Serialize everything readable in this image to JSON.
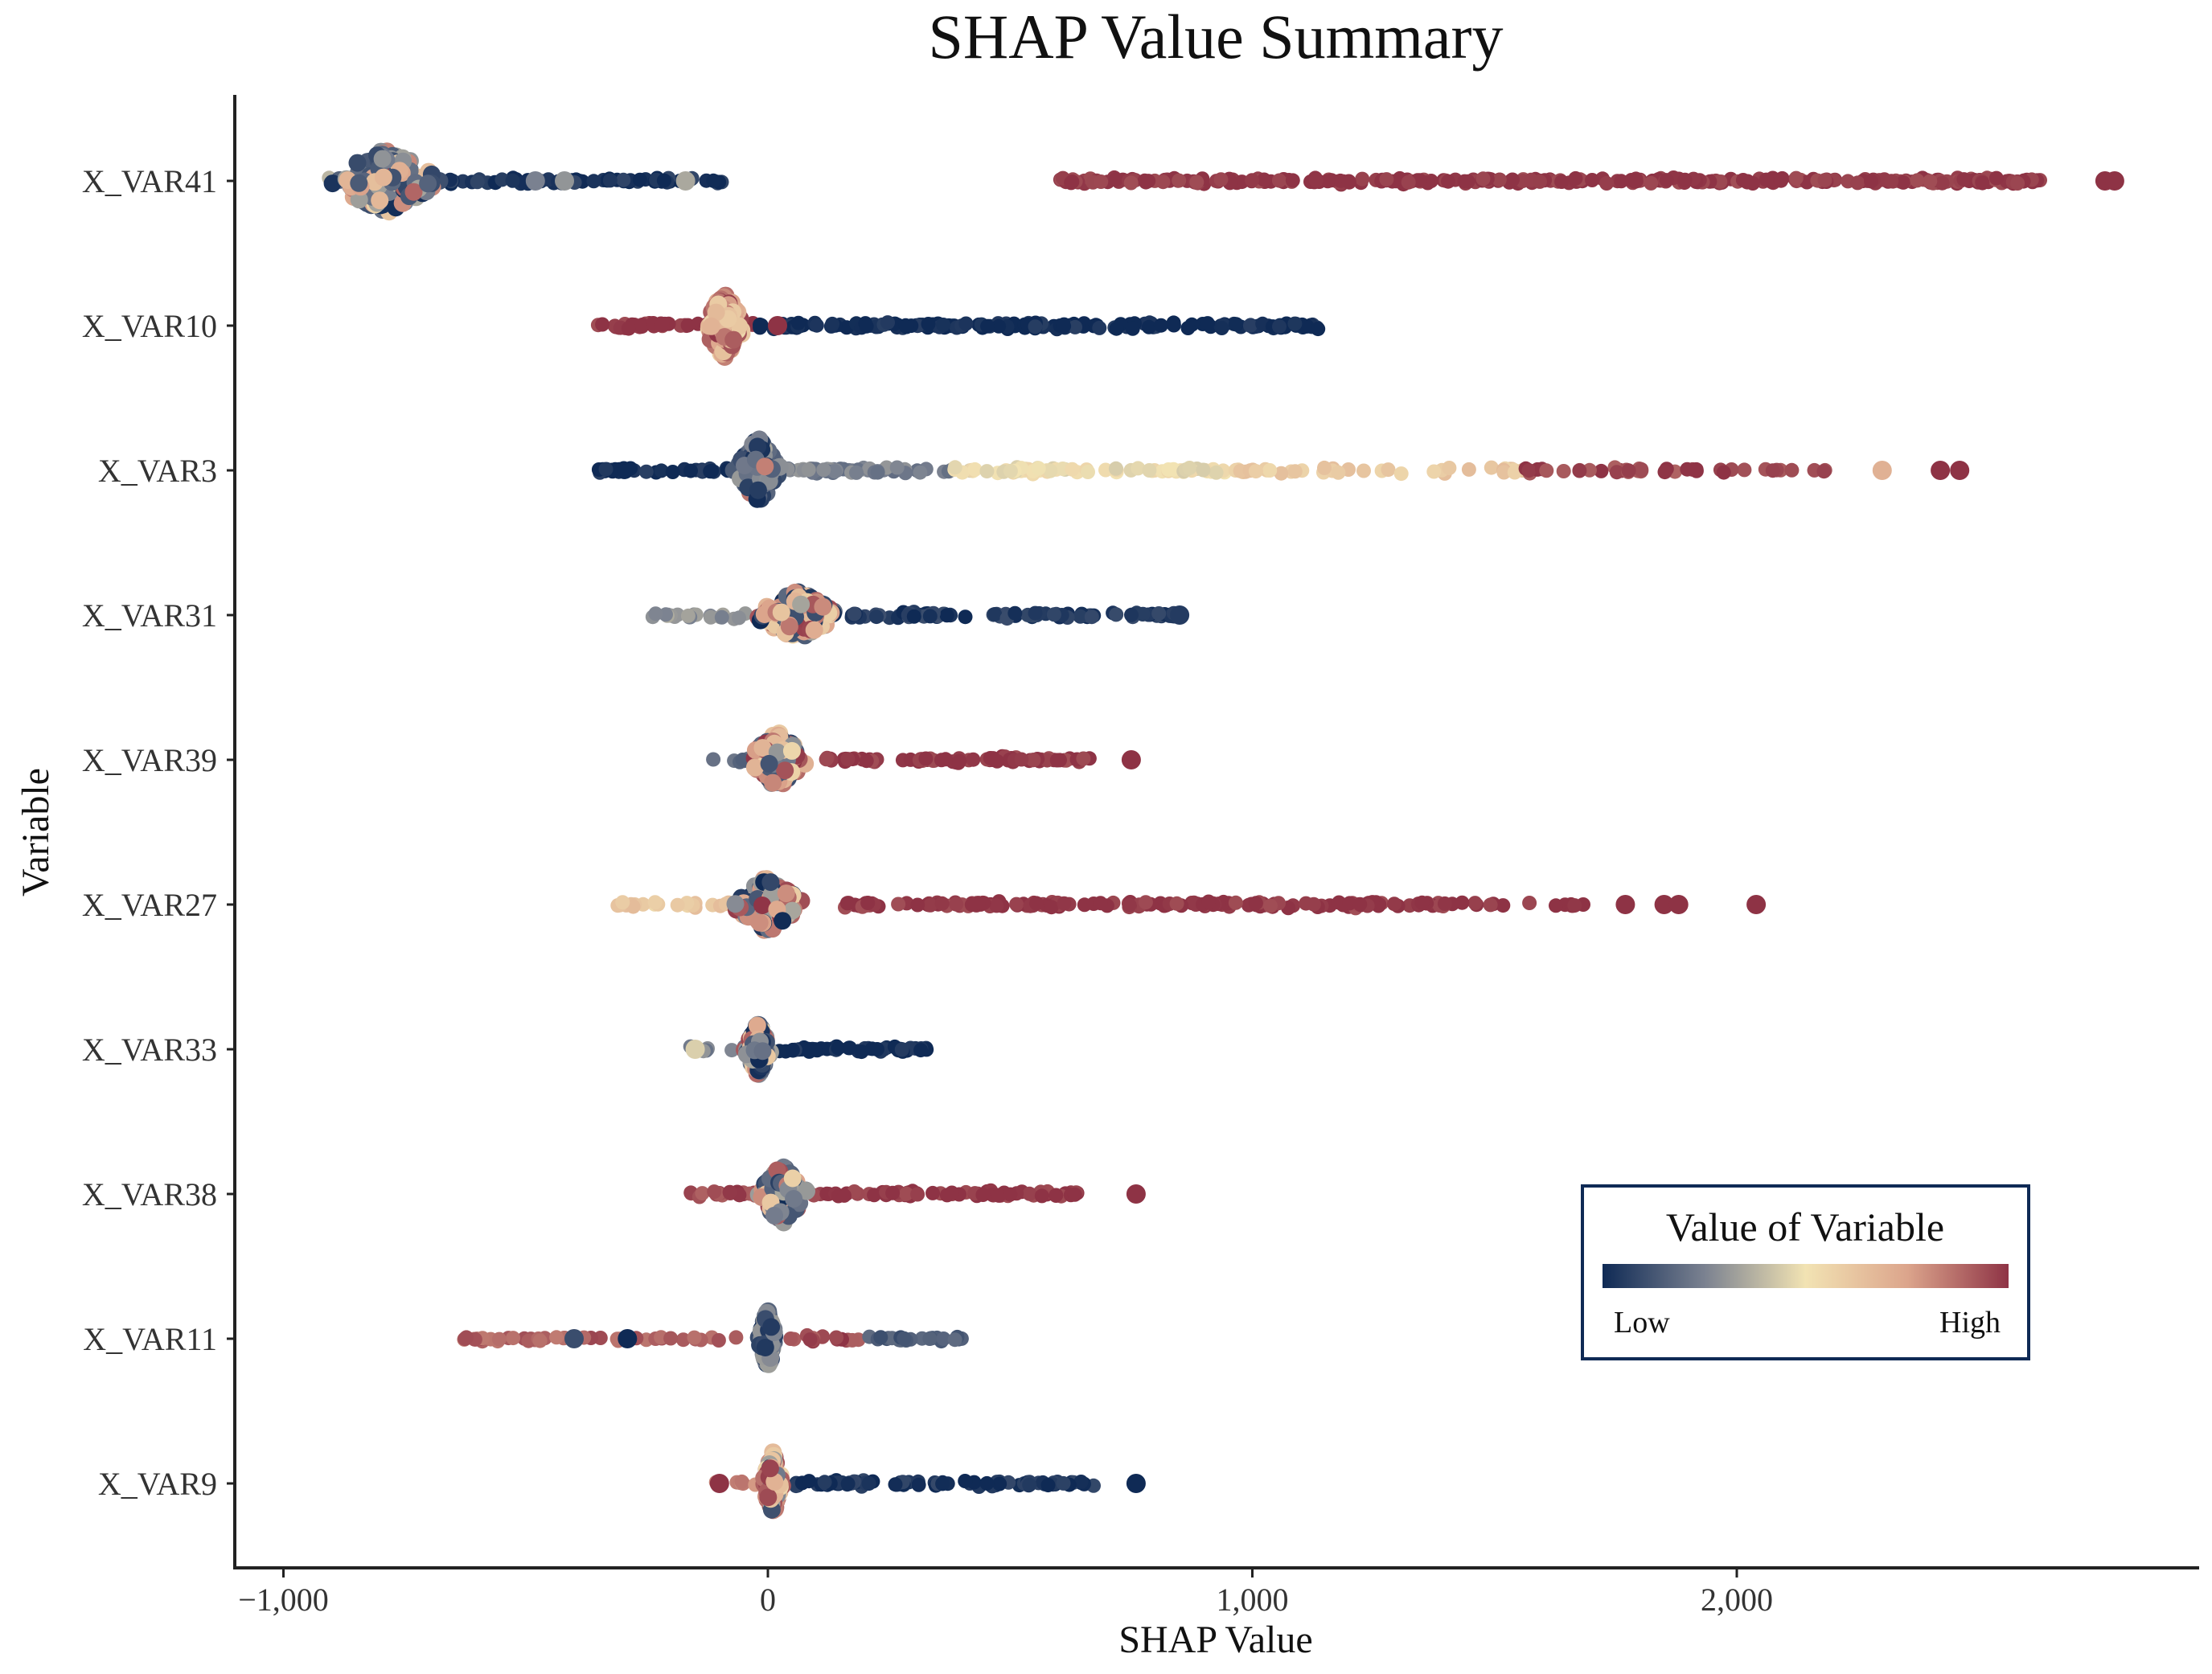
{
  "chart_data": {
    "type": "scatter",
    "subtype": "beeswarm",
    "title": "SHAP Value Summary",
    "xlabel": "SHAP Value",
    "ylabel": "Variable",
    "xlim": [
      -1100,
      2960
    ],
    "x_ticks": [
      -1000,
      0,
      1000,
      2000
    ],
    "x_tick_labels": [
      "−1,000",
      "0",
      "1,000",
      "2,000"
    ],
    "grid": false,
    "colors": {
      "low": "#0f2a55",
      "mid_low": "#7a8190",
      "mid": "#f2e3b3",
      "mid_high": "#dca58c",
      "high": "#8e3345"
    },
    "legend": {
      "title": "Value of Variable",
      "low_label": "Low",
      "high_label": "High",
      "position": "bottom-right"
    },
    "series": [
      {
        "name": "X_VAR41",
        "body": {
          "center": -790,
          "half_width": 130,
          "spread": 0.95,
          "color_mix": 0.4
        },
        "segments": [
          {
            "from": -930,
            "to": -680,
            "color": 0.35
          },
          {
            "from": -680,
            "to": -90,
            "color": 0.03,
            "density": 0.75
          },
          {
            "from": 600,
            "to": 2630,
            "color": 1.0,
            "density": 1.0
          }
        ],
        "highlights": [
          {
            "x": -480,
            "color": 0.25
          },
          {
            "x": -420,
            "color": 0.3
          },
          {
            "x": -170,
            "color": 0.35
          },
          {
            "x": 2760,
            "color": 1.0
          },
          {
            "x": 2780,
            "color": 1.0
          }
        ]
      },
      {
        "name": "X_VAR10",
        "body": {
          "center": -90,
          "half_width": 50,
          "spread": 0.95,
          "color_mix": 0.98
        },
        "segments": [
          {
            "from": -370,
            "to": -30,
            "color": 1.0
          },
          {
            "from": -20,
            "to": 1150,
            "color": 0.0,
            "density": 1.0
          }
        ],
        "highlights": [
          {
            "x": 20,
            "color": 1.0
          }
        ]
      },
      {
        "name": "X_VAR3",
        "body": {
          "center": -20,
          "half_width": 55,
          "spread": 0.95,
          "color_mix": 0.05
        },
        "segments": [
          {
            "from": -350,
            "to": 0,
            "color": 0.0
          },
          {
            "from": 0,
            "to": 380,
            "color": 0.25
          },
          {
            "from": 380,
            "to": 960,
            "color": 0.5,
            "density": 0.8
          },
          {
            "from": 960,
            "to": 1560,
            "color": 0.6,
            "density": 0.45
          },
          {
            "from": 1560,
            "to": 2200,
            "color": 0.95,
            "density": 0.45
          }
        ],
        "highlights": [
          {
            "x": 2300,
            "color": 0.7
          },
          {
            "x": 2420,
            "color": 1.0
          },
          {
            "x": 2460,
            "color": 1.0
          }
        ]
      },
      {
        "name": "X_VAR31",
        "body": {
          "center": 60,
          "half_width": 100,
          "spread": 0.7,
          "color_mix": 0.5
        },
        "segments": [
          {
            "from": -240,
            "to": -40,
            "color": 0.3,
            "density": 0.7
          },
          {
            "from": 150,
            "to": 840,
            "color": 0.05,
            "density": 0.85
          }
        ],
        "highlights": [
          {
            "x": 850,
            "color": 0.05
          }
        ]
      },
      {
        "name": "X_VAR39",
        "body": {
          "center": 20,
          "half_width": 70,
          "spread": 0.8,
          "color_mix": 0.7
        },
        "segments": [
          {
            "from": -130,
            "to": -30,
            "color": 0.2,
            "density": 0.6
          },
          {
            "from": 120,
            "to": 670,
            "color": 1.0,
            "density": 0.9
          }
        ],
        "highlights": [
          {
            "x": 750,
            "color": 1.0
          }
        ]
      },
      {
        "name": "X_VAR27",
        "body": {
          "center": 0,
          "half_width": 80,
          "spread": 0.8,
          "color_mix": 0.4
        },
        "segments": [
          {
            "from": -310,
            "to": -60,
            "color": 0.6,
            "density": 0.75
          },
          {
            "from": 150,
            "to": 1430,
            "color": 1.0,
            "density": 0.85
          },
          {
            "from": 1430,
            "to": 1700,
            "color": 1.0,
            "density": 0.35
          }
        ],
        "highlights": [
          {
            "x": 1770,
            "color": 1.0
          },
          {
            "x": 1850,
            "color": 1.0
          },
          {
            "x": 1880,
            "color": 1.0
          },
          {
            "x": 2040,
            "color": 1.0
          }
        ]
      },
      {
        "name": "X_VAR33",
        "body": {
          "center": -20,
          "half_width": 30,
          "spread": 0.75,
          "color_mix": 0.25
        },
        "segments": [
          {
            "from": -160,
            "to": -40,
            "color": 0.25,
            "density": 0.7
          },
          {
            "from": 20,
            "to": 330,
            "color": 0.0,
            "density": 1.0
          }
        ],
        "highlights": [
          {
            "x": -150,
            "color": 0.45
          }
        ]
      },
      {
        "name": "X_VAR38",
        "body": {
          "center": 30,
          "half_width": 60,
          "spread": 0.85,
          "color_mix": 0.4
        },
        "segments": [
          {
            "from": -180,
            "to": -20,
            "color": 0.95,
            "density": 0.85
          },
          {
            "from": 80,
            "to": 640,
            "color": 1.0,
            "density": 0.85
          }
        ],
        "highlights": [
          {
            "x": 760,
            "color": 1.0
          }
        ]
      },
      {
        "name": "X_VAR11",
        "body": {
          "center": 0,
          "half_width": 22,
          "spread": 0.85,
          "color_mix": 0.0
        },
        "segments": [
          {
            "from": -630,
            "to": -60,
            "color": 0.9,
            "density": 0.5
          },
          {
            "from": 20,
            "to": 200,
            "color": 0.95,
            "density": 0.6
          },
          {
            "from": 200,
            "to": 400,
            "color": 0.15,
            "density": 0.8
          }
        ],
        "highlights": [
          {
            "x": -400,
            "color": 0.1
          },
          {
            "x": -290,
            "color": 0.0
          }
        ]
      },
      {
        "name": "X_VAR9",
        "body": {
          "center": 10,
          "half_width": 22,
          "spread": 0.95,
          "color_mix": 0.8
        },
        "segments": [
          {
            "from": -110,
            "to": -20,
            "color": 0.8,
            "density": 0.6
          },
          {
            "from": 40,
            "to": 680,
            "color": 0.03,
            "density": 0.9
          }
        ],
        "highlights": [
          {
            "x": 760,
            "color": 0.0
          },
          {
            "x": -100,
            "color": 1.0
          }
        ]
      }
    ]
  }
}
